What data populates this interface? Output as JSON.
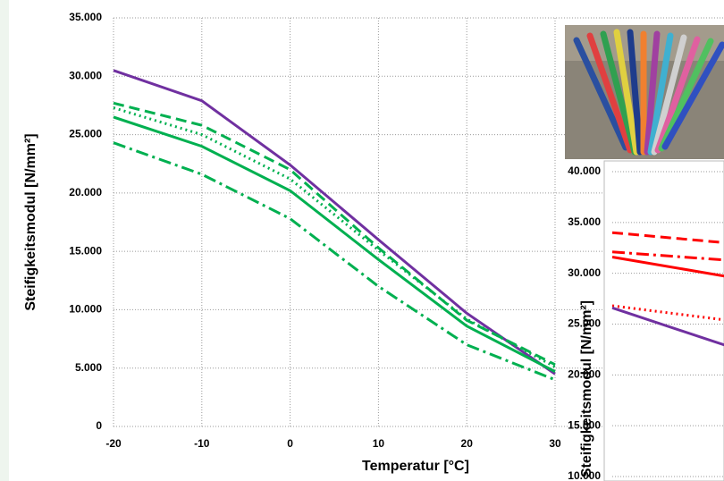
{
  "chart_data": [
    {
      "type": "line",
      "ylabel": "Steifigkeitsmodul [N/mm²]",
      "xlabel": "Temperatur [°C]",
      "x": [
        -20,
        -10,
        0,
        10,
        20,
        30
      ],
      "xlim": [
        -20,
        30
      ],
      "xticks": [
        -20,
        -10,
        0,
        10,
        20,
        30
      ],
      "ylim": [
        0,
        35000
      ],
      "yticks": [
        0,
        {
          "value": 5000,
          "label": "5.000"
        },
        {
          "value": 10000,
          "label": "10.000"
        },
        {
          "value": 15000,
          "label": "15.000"
        },
        {
          "value": 20000,
          "label": "20.000"
        },
        {
          "value": 25000,
          "label": "25.000"
        },
        {
          "value": 30000,
          "label": "30.000"
        },
        {
          "value": 35000,
          "label": "35.000"
        }
      ],
      "grid": true,
      "series": [
        {
          "color": "#7030a0",
          "dash": "solid",
          "values": [
            30500,
            27900,
            22400,
            16000,
            9700,
            4500
          ]
        },
        {
          "color": "#00b050",
          "dash": "dashed",
          "values": [
            27700,
            25800,
            22000,
            15300,
            9100,
            5300
          ]
        },
        {
          "color": "#00b050",
          "dash": "dotted",
          "values": [
            27300,
            25000,
            21200,
            15100,
            9200,
            5100
          ]
        },
        {
          "color": "#00b050",
          "dash": "solid",
          "values": [
            26500,
            24000,
            20200,
            14300,
            8600,
            4700
          ]
        },
        {
          "color": "#00b050",
          "dash": "dashdot",
          "values": [
            24300,
            21600,
            17800,
            12000,
            7000,
            4000
          ]
        }
      ]
    },
    {
      "type": "line",
      "ylabel": "Steifigkeitsmodul [N/mm²]",
      "categories": [
        null,
        null
      ],
      "ylim": [
        10000,
        40000
      ],
      "yticks": [
        {
          "value": 10000,
          "label": "10.000"
        },
        {
          "value": 15000,
          "label": "15.000"
        },
        {
          "value": 20000,
          "label": "20.000"
        },
        {
          "value": 25000,
          "label": "25.000"
        },
        {
          "value": 30000,
          "label": "30.000"
        },
        {
          "value": 35000,
          "label": "35.000"
        },
        {
          "value": 40000,
          "label": "40.000"
        }
      ],
      "grid": true,
      "series": [
        {
          "color": "#ff0000",
          "dash": "dashed",
          "values": [
            34000,
            33000
          ]
        },
        {
          "color": "#ff0000",
          "dash": "dashdot",
          "values": [
            32100,
            31300
          ]
        },
        {
          "color": "#ff0000",
          "dash": "solid",
          "values": [
            31600,
            29700
          ]
        },
        {
          "color": "#ff0000",
          "dash": "dotted",
          "values": [
            26800,
            25400
          ]
        },
        {
          "color": "#7030a0",
          "dash": "solid",
          "values": [
            26600,
            22900
          ]
        }
      ]
    }
  ]
}
